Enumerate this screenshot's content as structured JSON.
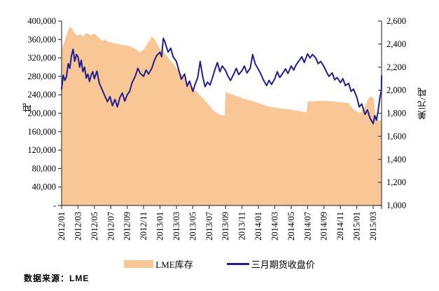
{
  "footer": {
    "source_label": "数据来源：LME"
  },
  "colors": {
    "area": "#F8C795",
    "line": "#1F1F8F",
    "axis": "#404040",
    "text": "#000000"
  },
  "chart_data": {
    "type": "combo-area-line",
    "title": "",
    "x_axis": {
      "unit": "year/month",
      "tick_labels": [
        "2012/01",
        "2012/03",
        "2012/05",
        "2012/07",
        "2012/09",
        "2012/11",
        "2013/01",
        "2013/03",
        "2013/05",
        "2013/07",
        "2013/09",
        "2013/11",
        "2014/01",
        "2014/03",
        "2014/05",
        "2014/07",
        "2014/09",
        "2014/11",
        "2015/01",
        "2015/03"
      ],
      "months_per_tick": 2,
      "label_rotation_deg": -90
    },
    "left_axis": {
      "title": "吨",
      "min": 0,
      "max": 400000,
      "step": 40000,
      "tick_labels": [
        "400,000",
        "360,000",
        "320,000",
        "280,000",
        "240,000",
        "200,000",
        "160,000",
        "120,000",
        "80,000",
        "40,000",
        "-"
      ]
    },
    "right_axis": {
      "title": "美元/吨",
      "min": 1000,
      "max": 2600,
      "step": 200,
      "tick_labels": [
        "2,600",
        "2,400",
        "2,200",
        "2,000",
        "1,800",
        "1,600",
        "1,400",
        "1,200",
        "1,000"
      ]
    },
    "grid": "off",
    "legend_position": "bottom-center",
    "series": [
      {
        "name": "LME库存",
        "type": "area",
        "axis": "left",
        "color": "#F8C795",
        "x_unit": "months_since_2012_01",
        "points": [
          [
            0,
            340000
          ],
          [
            0.3,
            352000
          ],
          [
            0.6,
            370000
          ],
          [
            1,
            388000
          ],
          [
            1.3,
            383000
          ],
          [
            1.6,
            374000
          ],
          [
            2,
            368000
          ],
          [
            2.3,
            372000
          ],
          [
            2.6,
            366000
          ],
          [
            3,
            374000
          ],
          [
            3.3,
            372000
          ],
          [
            3.6,
            369000
          ],
          [
            4,
            373000
          ],
          [
            4.3,
            368000
          ],
          [
            4.6,
            362000
          ],
          [
            5,
            357000
          ],
          [
            5.3,
            360000
          ],
          [
            5.6,
            356000
          ],
          [
            6,
            354000
          ],
          [
            6.5,
            351000
          ],
          [
            7,
            350000
          ],
          [
            7.5,
            348000
          ],
          [
            8,
            347000
          ],
          [
            8.5,
            344000
          ],
          [
            9,
            340000
          ],
          [
            9.5,
            332000
          ],
          [
            10,
            338000
          ],
          [
            10.5,
            352000
          ],
          [
            11,
            366000
          ],
          [
            11.3,
            362000
          ],
          [
            11.6,
            352000
          ],
          [
            12,
            340000
          ],
          [
            12.5,
            332000
          ],
          [
            13,
            320000
          ],
          [
            13.5,
            310000
          ],
          [
            14,
            298000
          ],
          [
            14.5,
            287000
          ],
          [
            15,
            276000
          ],
          [
            15.5,
            265000
          ],
          [
            16,
            255000
          ],
          [
            16.5,
            246000
          ],
          [
            17,
            237000
          ],
          [
            17.5,
            228000
          ],
          [
            18,
            217000
          ],
          [
            18.5,
            206000
          ],
          [
            19,
            200000
          ],
          [
            19.5,
            196000
          ],
          [
            19.9,
            195000
          ],
          [
            20,
            245000
          ],
          [
            20.5,
            242000
          ],
          [
            21,
            240000
          ],
          [
            21.5,
            236000
          ],
          [
            22,
            233000
          ],
          [
            22.5,
            230000
          ],
          [
            23,
            228000
          ],
          [
            23.5,
            225000
          ],
          [
            24,
            222000
          ],
          [
            24.5,
            219000
          ],
          [
            25,
            216000
          ],
          [
            25.5,
            214000
          ],
          [
            26,
            212000
          ],
          [
            26.5,
            211000
          ],
          [
            27,
            210000
          ],
          [
            27.5,
            209000
          ],
          [
            28,
            208000
          ],
          [
            28.5,
            206000
          ],
          [
            29,
            205000
          ],
          [
            29.5,
            203000
          ],
          [
            29.9,
            202000
          ],
          [
            30,
            225000
          ],
          [
            30.5,
            226000
          ],
          [
            31,
            226000
          ],
          [
            31.5,
            227000
          ],
          [
            32,
            227000
          ],
          [
            32.5,
            226000
          ],
          [
            33,
            226000
          ],
          [
            33.5,
            225000
          ],
          [
            34,
            224000
          ],
          [
            34.5,
            223000
          ],
          [
            35,
            222000
          ],
          [
            35.5,
            210000
          ],
          [
            36,
            204000
          ],
          [
            36.3,
            200000
          ],
          [
            36.6,
            205000
          ],
          [
            37,
            215000
          ],
          [
            37.4,
            232000
          ],
          [
            37.8,
            237000
          ],
          [
            38.1,
            230000
          ],
          [
            38.3,
            187000
          ],
          [
            38.7,
            185000
          ],
          [
            39,
            184000
          ]
        ]
      },
      {
        "name": "三月期货收盘价",
        "type": "line",
        "axis": "right",
        "color": "#1F1F8F",
        "x_unit": "months_since_2012_01",
        "points": [
          [
            0,
            2010
          ],
          [
            0.2,
            2130
          ],
          [
            0.4,
            2085
          ],
          [
            0.6,
            2120
          ],
          [
            0.8,
            2230
          ],
          [
            1,
            2190
          ],
          [
            1.2,
            2300
          ],
          [
            1.4,
            2355
          ],
          [
            1.6,
            2250
          ],
          [
            1.8,
            2310
          ],
          [
            2,
            2290
          ],
          [
            2.2,
            2200
          ],
          [
            2.4,
            2260
          ],
          [
            2.6,
            2160
          ],
          [
            2.8,
            2200
          ],
          [
            3,
            2105
          ],
          [
            3.2,
            2140
          ],
          [
            3.4,
            2075
          ],
          [
            3.6,
            2130
          ],
          [
            3.8,
            2160
          ],
          [
            4,
            2100
          ],
          [
            4.3,
            2165
          ],
          [
            4.6,
            2060
          ],
          [
            5,
            1995
          ],
          [
            5.3,
            1945
          ],
          [
            5.6,
            1900
          ],
          [
            5.9,
            1945
          ],
          [
            6.2,
            1865
          ],
          [
            6.5,
            1920
          ],
          [
            6.8,
            1855
          ],
          [
            7.1,
            1935
          ],
          [
            7.4,
            1975
          ],
          [
            7.7,
            1905
          ],
          [
            8,
            1960
          ],
          [
            8.3,
            1990
          ],
          [
            8.6,
            2065
          ],
          [
            9,
            2125
          ],
          [
            9.3,
            2190
          ],
          [
            9.6,
            2145
          ],
          [
            10,
            2120
          ],
          [
            10.3,
            2175
          ],
          [
            10.6,
            2140
          ],
          [
            11,
            2190
          ],
          [
            11.3,
            2255
          ],
          [
            11.6,
            2300
          ],
          [
            12,
            2330
          ],
          [
            12.2,
            2290
          ],
          [
            12.4,
            2450
          ],
          [
            12.6,
            2420
          ],
          [
            12.8,
            2370
          ],
          [
            13,
            2330
          ],
          [
            13.3,
            2365
          ],
          [
            13.6,
            2290
          ],
          [
            14,
            2250
          ],
          [
            14.3,
            2170
          ],
          [
            14.6,
            2095
          ],
          [
            15,
            2140
          ],
          [
            15.3,
            2035
          ],
          [
            15.6,
            2080
          ],
          [
            16,
            1990
          ],
          [
            16.3,
            2055
          ],
          [
            16.6,
            2110
          ],
          [
            16.9,
            2250
          ],
          [
            17.2,
            2120
          ],
          [
            17.5,
            2030
          ],
          [
            17.8,
            2070
          ],
          [
            18.1,
            2045
          ],
          [
            18.4,
            2110
          ],
          [
            18.7,
            2180
          ],
          [
            19,
            2240
          ],
          [
            19.3,
            2160
          ],
          [
            19.6,
            2210
          ],
          [
            20,
            2170
          ],
          [
            20.3,
            2120
          ],
          [
            20.6,
            2085
          ],
          [
            21,
            2140
          ],
          [
            21.3,
            2190
          ],
          [
            21.6,
            2135
          ],
          [
            22,
            2170
          ],
          [
            22.3,
            2210
          ],
          [
            22.6,
            2150
          ],
          [
            23,
            2190
          ],
          [
            23.3,
            2310
          ],
          [
            23.6,
            2230
          ],
          [
            24,
            2180
          ],
          [
            24.3,
            2140
          ],
          [
            24.6,
            2090
          ],
          [
            25,
            2040
          ],
          [
            25.3,
            2085
          ],
          [
            25.6,
            2050
          ],
          [
            26,
            2100
          ],
          [
            26.3,
            2160
          ],
          [
            26.6,
            2110
          ],
          [
            27,
            2150
          ],
          [
            27.3,
            2185
          ],
          [
            27.6,
            2145
          ],
          [
            28,
            2210
          ],
          [
            28.3,
            2175
          ],
          [
            28.6,
            2220
          ],
          [
            29,
            2260
          ],
          [
            29.3,
            2290
          ],
          [
            29.6,
            2240
          ],
          [
            30,
            2315
          ],
          [
            30.3,
            2280
          ],
          [
            30.6,
            2310
          ],
          [
            31,
            2280
          ],
          [
            31.3,
            2230
          ],
          [
            31.6,
            2250
          ],
          [
            32,
            2205
          ],
          [
            32.3,
            2160
          ],
          [
            32.6,
            2120
          ],
          [
            33,
            2150
          ],
          [
            33.3,
            2090
          ],
          [
            33.6,
            2110
          ],
          [
            34,
            2065
          ],
          [
            34.3,
            2100
          ],
          [
            34.6,
            2040
          ],
          [
            35,
            2060
          ],
          [
            35.3,
            1990
          ],
          [
            35.6,
            2010
          ],
          [
            36,
            1940
          ],
          [
            36.3,
            1855
          ],
          [
            36.6,
            1880
          ],
          [
            37,
            1790
          ],
          [
            37.3,
            1830
          ],
          [
            37.6,
            1760
          ],
          [
            38,
            1710
          ],
          [
            38.2,
            1780
          ],
          [
            38.4,
            1740
          ],
          [
            38.6,
            1820
          ],
          [
            38.8,
            1930
          ],
          [
            39,
            2000
          ],
          [
            39.2,
            2125
          ]
        ]
      }
    ]
  }
}
